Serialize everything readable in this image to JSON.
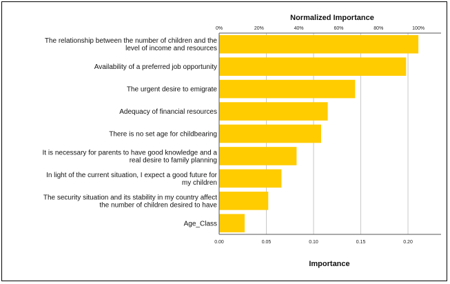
{
  "chart_data": {
    "type": "bar",
    "orientation": "horizontal",
    "top_axis_title": "Normalized Importance",
    "bottom_axis_title": "Importance",
    "top_ticks": [
      "0%",
      "20%",
      "40%",
      "60%",
      "80%",
      "100%"
    ],
    "bottom_ticks": [
      "0.00",
      "0.05",
      "0.10",
      "0.15",
      "0.20"
    ],
    "xlim": [
      0,
      0.235
    ],
    "grid": true,
    "bar_color": "#FFCC00",
    "categories": [
      [
        "The relationship between the number of children and the",
        "level of income and resources"
      ],
      [
        "Availability of a preferred job opportunity"
      ],
      [
        "The urgent desire to emigrate"
      ],
      [
        "Adequacy of financial resources"
      ],
      [
        "There is no set age for childbearing"
      ],
      [
        "It is necessary for parents to have good knowledge and a",
        "real desire to family planning"
      ],
      [
        "In light of the current situation, I expect a good future for",
        "my children"
      ],
      [
        "The security situation and its stability in my country affect",
        "the number of children desired to have"
      ],
      [
        "Age_Class"
      ]
    ],
    "values": [
      0.211,
      0.198,
      0.144,
      0.115,
      0.108,
      0.082,
      0.066,
      0.052,
      0.027
    ]
  }
}
